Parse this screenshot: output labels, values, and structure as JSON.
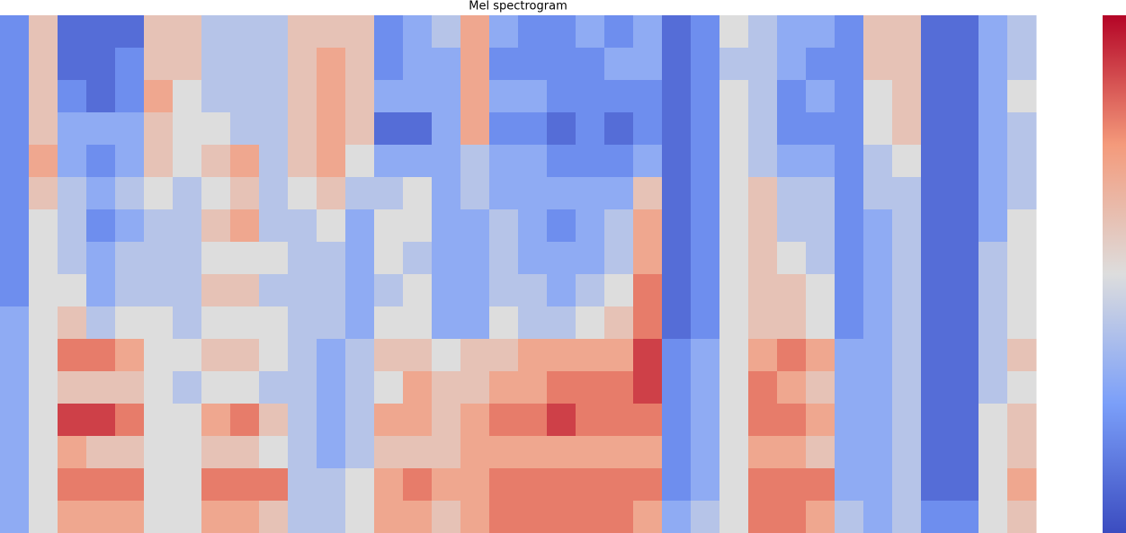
{
  "chart_data": {
    "type": "heatmap",
    "title": "Mel spectrogram",
    "zlim": [
      0,
      10
    ],
    "colormap": [
      "#3b4cc0",
      "#7b9ff9",
      "#dddddd",
      "#f49a7b",
      "#b40426"
    ],
    "values": [
      [
        2,
        6,
        1,
        1,
        1,
        6,
        6,
        4,
        4,
        4,
        6,
        6,
        6,
        2,
        3,
        4,
        7,
        3,
        2,
        2,
        3,
        2,
        3,
        1,
        2,
        5,
        4,
        3,
        3,
        2,
        6,
        6,
        1,
        1,
        3,
        4
      ],
      [
        2,
        6,
        1,
        1,
        2,
        6,
        6,
        4,
        4,
        4,
        6,
        7,
        6,
        2,
        3,
        3,
        7,
        2,
        2,
        2,
        2,
        3,
        3,
        1,
        2,
        4,
        4,
        3,
        2,
        2,
        6,
        6,
        1,
        1,
        3,
        4
      ],
      [
        2,
        6,
        2,
        1,
        2,
        7,
        5,
        4,
        4,
        4,
        6,
        7,
        6,
        3,
        3,
        3,
        7,
        3,
        3,
        2,
        2,
        2,
        2,
        1,
        2,
        5,
        4,
        2,
        3,
        2,
        5,
        6,
        1,
        1,
        3,
        5
      ],
      [
        2,
        6,
        3,
        3,
        3,
        6,
        5,
        5,
        4,
        4,
        6,
        7,
        6,
        1,
        1,
        3,
        7,
        2,
        2,
        1,
        2,
        1,
        2,
        1,
        2,
        5,
        4,
        2,
        2,
        2,
        5,
        6,
        1,
        1,
        3,
        4
      ],
      [
        2,
        7,
        3,
        2,
        3,
        6,
        5,
        6,
        7,
        4,
        6,
        7,
        5,
        3,
        3,
        3,
        4,
        3,
        3,
        2,
        2,
        2,
        3,
        1,
        2,
        5,
        4,
        3,
        3,
        2,
        4,
        5,
        1,
        1,
        3,
        4
      ],
      [
        2,
        6,
        4,
        3,
        4,
        5,
        4,
        5,
        6,
        4,
        5,
        6,
        4,
        4,
        5,
        3,
        4,
        3,
        3,
        3,
        3,
        3,
        6,
        1,
        2,
        5,
        6,
        4,
        4,
        2,
        4,
        4,
        1,
        1,
        3,
        4
      ],
      [
        2,
        5,
        4,
        2,
        3,
        4,
        4,
        6,
        7,
        4,
        4,
        5,
        3,
        5,
        5,
        3,
        3,
        4,
        3,
        2,
        3,
        4,
        7,
        1,
        2,
        5,
        6,
        4,
        4,
        2,
        3,
        4,
        1,
        1,
        3,
        5
      ],
      [
        2,
        5,
        4,
        3,
        4,
        4,
        4,
        5,
        5,
        5,
        4,
        4,
        3,
        5,
        4,
        3,
        3,
        4,
        3,
        3,
        3,
        4,
        7,
        1,
        2,
        5,
        6,
        5,
        4,
        2,
        3,
        4,
        1,
        1,
        4,
        5
      ],
      [
        2,
        5,
        5,
        3,
        4,
        4,
        4,
        6,
        6,
        4,
        4,
        4,
        3,
        4,
        5,
        3,
        3,
        4,
        4,
        3,
        4,
        5,
        8,
        1,
        2,
        5,
        6,
        6,
        5,
        2,
        3,
        4,
        1,
        1,
        4,
        5
      ],
      [
        3,
        5,
        6,
        4,
        5,
        5,
        4,
        5,
        5,
        5,
        4,
        4,
        3,
        5,
        5,
        3,
        3,
        5,
        4,
        4,
        5,
        6,
        8,
        1,
        2,
        5,
        6,
        6,
        5,
        2,
        3,
        4,
        1,
        1,
        4,
        5
      ],
      [
        3,
        5,
        8,
        8,
        7,
        5,
        5,
        6,
        6,
        5,
        4,
        3,
        4,
        6,
        6,
        5,
        6,
        6,
        7,
        7,
        7,
        7,
        9,
        2,
        3,
        5,
        7,
        8,
        7,
        3,
        3,
        4,
        1,
        1,
        4,
        6
      ],
      [
        3,
        5,
        6,
        6,
        6,
        5,
        4,
        5,
        5,
        4,
        4,
        3,
        4,
        5,
        7,
        6,
        6,
        7,
        7,
        8,
        8,
        8,
        9,
        2,
        3,
        5,
        8,
        7,
        6,
        3,
        3,
        4,
        1,
        1,
        4,
        5
      ],
      [
        3,
        5,
        9,
        9,
        8,
        5,
        5,
        7,
        8,
        6,
        4,
        3,
        4,
        7,
        7,
        6,
        7,
        8,
        8,
        9,
        8,
        8,
        8,
        2,
        3,
        5,
        8,
        8,
        7,
        3,
        3,
        4,
        1,
        1,
        5,
        6
      ],
      [
        3,
        5,
        7,
        6,
        6,
        5,
        5,
        6,
        6,
        5,
        4,
        3,
        4,
        6,
        6,
        6,
        7,
        7,
        7,
        7,
        7,
        7,
        7,
        2,
        3,
        5,
        7,
        7,
        6,
        3,
        3,
        4,
        1,
        1,
        5,
        6
      ],
      [
        3,
        5,
        8,
        8,
        8,
        5,
        5,
        8,
        8,
        8,
        4,
        4,
        5,
        7,
        8,
        7,
        7,
        8,
        8,
        8,
        8,
        8,
        8,
        2,
        3,
        5,
        8,
        8,
        8,
        3,
        3,
        4,
        1,
        1,
        5,
        7
      ],
      [
        3,
        5,
        7,
        7,
        7,
        5,
        5,
        7,
        7,
        6,
        4,
        4,
        5,
        7,
        7,
        6,
        7,
        8,
        8,
        8,
        8,
        8,
        7,
        3,
        4,
        5,
        8,
        8,
        7,
        4,
        3,
        4,
        2,
        2,
        5,
        6
      ]
    ]
  }
}
